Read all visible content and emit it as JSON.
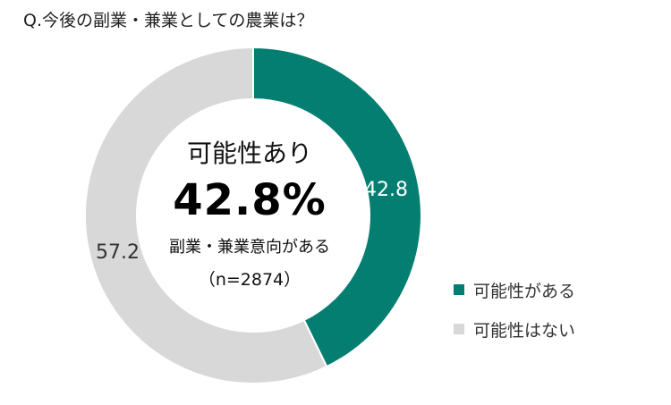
{
  "title": "Q.今後の副業・兼業としての農業は？",
  "center": {
    "heading": "可能性あり",
    "value": "42.8%",
    "subtitle": "副業・兼業意向がある",
    "sample": "（n=2874）"
  },
  "colors": {
    "yes": "#047e70",
    "no": "#d8d8d8"
  },
  "chart_data": {
    "type": "pie",
    "donut": true,
    "labels": [
      "可能性がある",
      "可能性はない"
    ],
    "values": [
      42.8,
      57.2
    ],
    "value_labels": [
      "42.8",
      "57.2"
    ],
    "title": "Q.今後の副業・兼業としての農業は？",
    "legend": "right"
  }
}
